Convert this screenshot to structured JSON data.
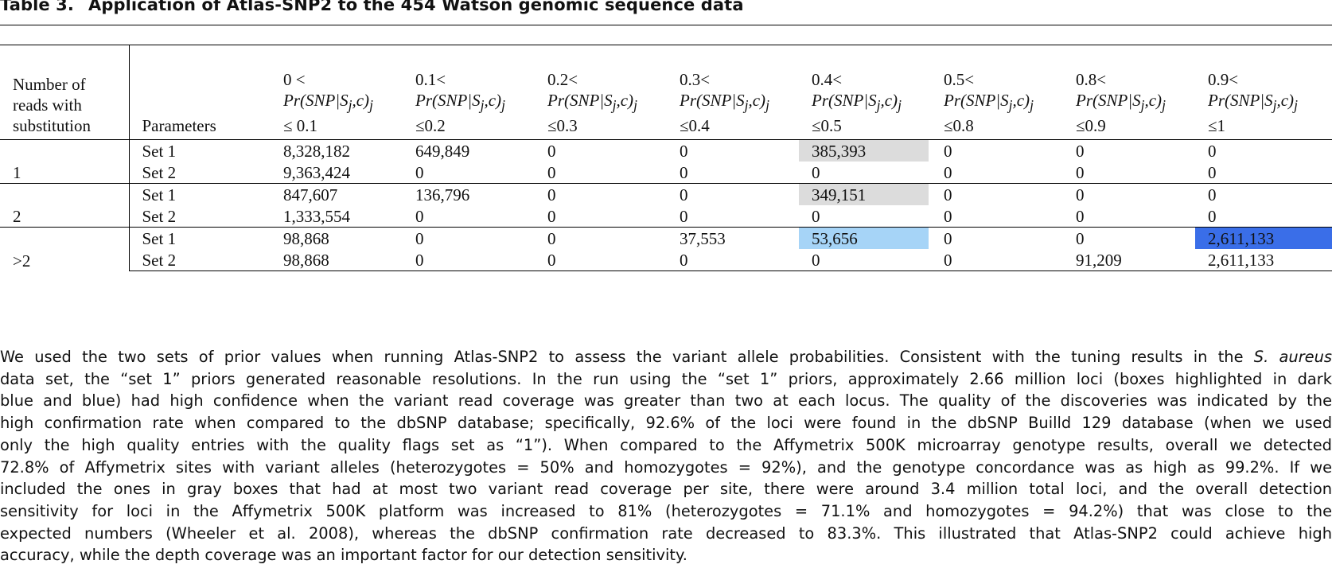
{
  "caption": {
    "label": "Table 3.",
    "title": "Application of Atlas-SNP2 to the 454 Watson genomic sequence data"
  },
  "table": {
    "header_row_label": [
      "Number of",
      "reads with",
      "substitution"
    ],
    "header_params": "Parameters",
    "columns": [
      {
        "lower": "0 <",
        "expr": "Pr(SNP|S",
        "sub1": "j",
        "mid": ",c)",
        "sub2": "j",
        "upper": "≤ 0.1"
      },
      {
        "lower": "0.1<",
        "expr": "Pr(SNP|S",
        "sub1": "j",
        "mid": ",c)",
        "sub2": "j",
        "upper": "≤0.2"
      },
      {
        "lower": "0.2<",
        "expr": "Pr(SNP|S",
        "sub1": "j",
        "mid": ",c)",
        "sub2": "j",
        "upper": "≤0.3"
      },
      {
        "lower": "0.3<",
        "expr": "Pr(SNP|S",
        "sub1": "j",
        "mid": ",c)",
        "sub2": "j",
        "upper": "≤0.4"
      },
      {
        "lower": "0.4<",
        "expr": "Pr(SNP|S",
        "sub1": "j",
        "mid": ",c)",
        "sub2": "j",
        "upper": "≤0.5"
      },
      {
        "lower": "0.5<",
        "expr": "Pr(SNP|S",
        "sub1": "j",
        "mid": ",c)",
        "sub2": "j",
        "upper": "≤0.8"
      },
      {
        "lower": "0.8<",
        "expr": "Pr(SNP|S",
        "sub1": "j",
        "mid": ",c)",
        "sub2": "j",
        "upper": "≤0.9"
      },
      {
        "lower": "0.9<",
        "expr": "Pr(SNP|S",
        "sub1": "j",
        "mid": ",c)",
        "sub2": "j",
        "upper": "≤1"
      }
    ],
    "groups": [
      {
        "label": "1",
        "rows": [
          {
            "param": "Set 1",
            "values": [
              "8,328,182",
              "649,849",
              "0",
              "0",
              "385,393",
              "0",
              "0",
              "0"
            ],
            "highlight": [
              "",
              "",
              "",
              "",
              "gray",
              "",
              "",
              ""
            ]
          },
          {
            "param": "Set 2",
            "values": [
              "9,363,424",
              "0",
              "0",
              "0",
              "0",
              "0",
              "0",
              "0"
            ],
            "highlight": [
              "",
              "",
              "",
              "",
              "",
              "",
              "",
              ""
            ]
          }
        ]
      },
      {
        "label": "2",
        "rows": [
          {
            "param": "Set 1",
            "values": [
              "847,607",
              "136,796",
              "0",
              "0",
              "349,151",
              "0",
              "0",
              "0"
            ],
            "highlight": [
              "",
              "",
              "",
              "",
              "gray",
              "",
              "",
              ""
            ]
          },
          {
            "param": "Set 2",
            "values": [
              "1,333,554",
              "0",
              "0",
              "0",
              "0",
              "0",
              "0",
              "0"
            ],
            "highlight": [
              "",
              "",
              "",
              "",
              "",
              "",
              "",
              ""
            ]
          }
        ]
      },
      {
        "label": ">2",
        "rows": [
          {
            "param": "Set 1",
            "values": [
              "98,868",
              "0",
              "0",
              "37,553",
              "53,656",
              "0",
              "0",
              "2,611,133"
            ],
            "highlight": [
              "",
              "",
              "",
              "",
              "blue",
              "",
              "",
              "darkblue"
            ]
          },
          {
            "param": "Set 2",
            "values": [
              "98,868",
              "0",
              "0",
              "0",
              "0",
              "0",
              "91,209",
              "2,611,133"
            ],
            "highlight": [
              "",
              "",
              "",
              "",
              "",
              "",
              "",
              ""
            ]
          }
        ]
      }
    ],
    "colors": {
      "gray": "#dcdcdc",
      "blue": "#a6d4f7",
      "darkblue": "#3a6ee8"
    }
  },
  "paragraph": {
    "lines": [
      [
        "We used the two sets of prior values when running Atlas-SNP2 to assess the variant allele probabilities. Consistent with the tuning results in the ",
        {
          "i": "S. aureus"
        }
      ],
      [
        "data set, the “set 1” priors generated reasonable resolutions. In the run using the “set 1” priors, approximately 2.66 million loci (boxes highlighted in dark"
      ],
      [
        "blue and blue) had high confidence when the variant read coverage was greater than two at each locus. The quality of the discoveries was indicated by the"
      ],
      [
        "high confirmation rate when compared to the dbSNP database; specifically, 92.6% of the loci were found in the dbSNP Builld 129 database (when we used"
      ],
      [
        "only the high quality entries with the quality flags set as “1”). When compared to the Affymetrix 500K microarray genotype results, overall we detected"
      ],
      [
        "72.8% of Affymetrix sites with variant alleles (heterozygotes = 50% and homozygotes = 92%), and the genotype concordance was as high as 99.2%. If we"
      ],
      [
        "included the ones in gray boxes that had at most two variant read coverage per site, there were around 3.4 million total loci, and the overall detection"
      ],
      [
        "sensitivity for loci in the Affymetrix 500K platform was increased to 81% (heterozygotes = 71.1% and homozygotes = 94.2%) that was close to the"
      ],
      [
        "expected numbers (Wheeler et al. 2008), whereas the dbSNP confirmation rate decreased to 83.3%. This illustrated that Atlas-SNP2 could achieve high"
      ],
      [
        "accuracy, while the depth coverage was an important factor for our detection sensitivity."
      ]
    ]
  }
}
